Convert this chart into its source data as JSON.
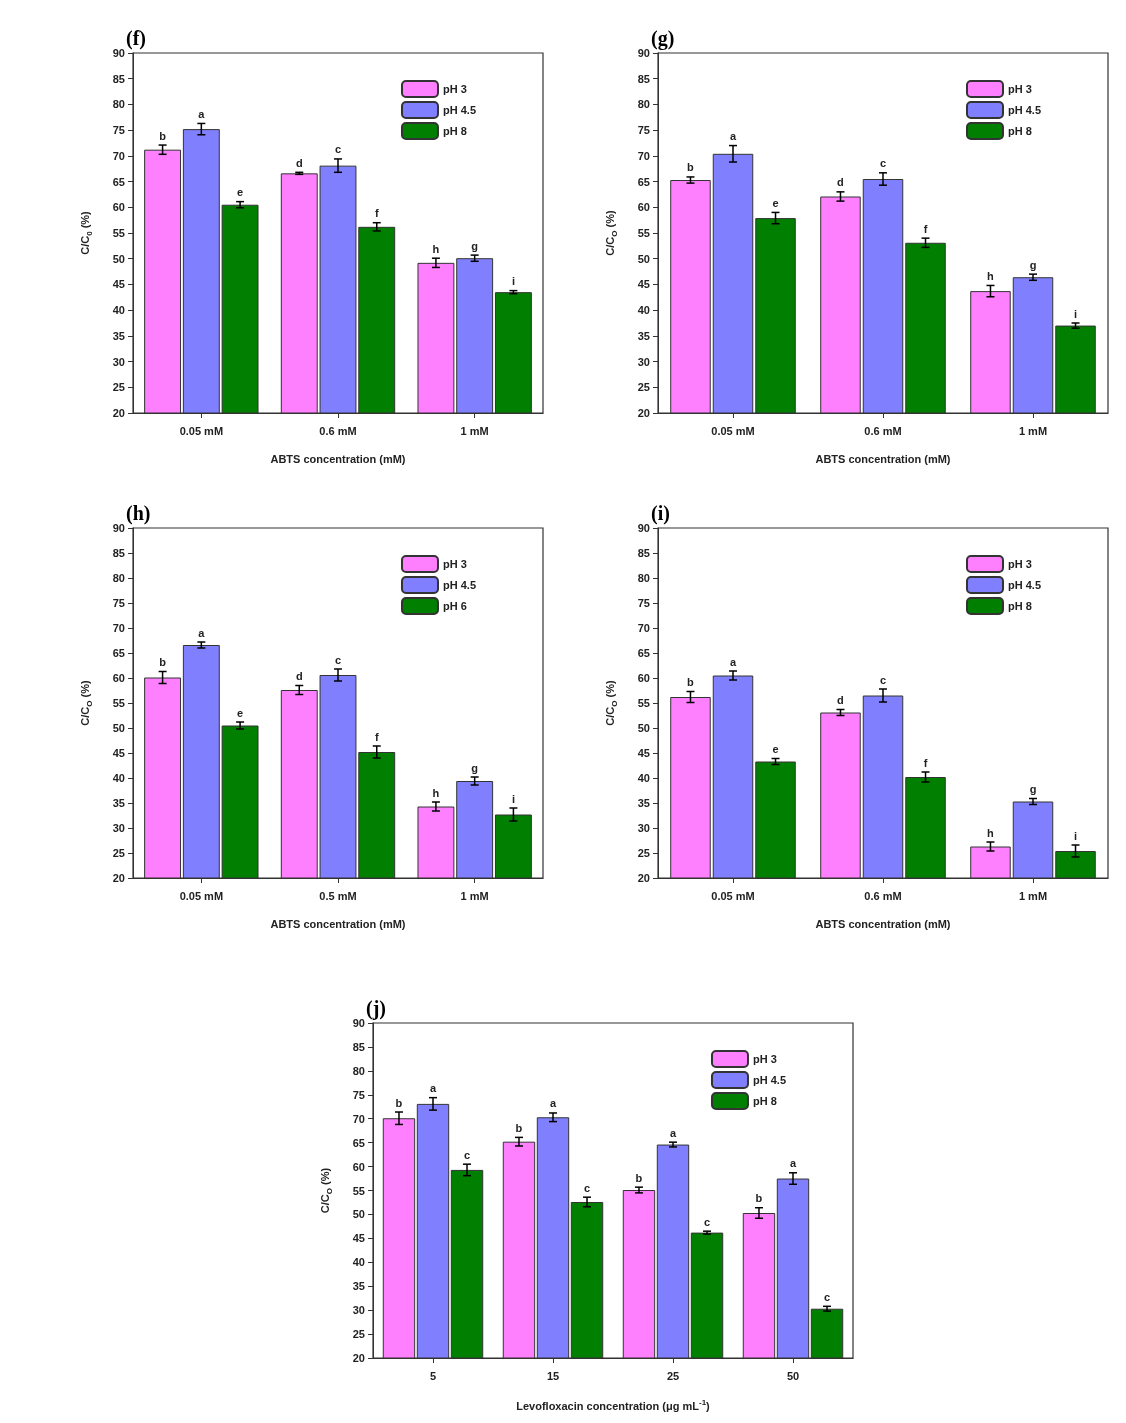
{
  "chart_data": [
    {
      "type": "bar",
      "title": "(f)",
      "xlabel": "ABTS concentration (mM)",
      "ylabel": "C/C$_{0}$ (%)",
      "categories": [
        "0.05 mM",
        "0.6 mM",
        "1 mM"
      ],
      "ylim": [
        20,
        90
      ],
      "yticks": [
        20,
        25,
        30,
        35,
        40,
        45,
        50,
        55,
        60,
        65,
        70,
        75,
        80,
        85,
        90
      ],
      "legend": "top right",
      "series": [
        {
          "name": "pH 3",
          "color": "#ff80ff",
          "values": [
            71.2,
            66.6,
            49.2
          ],
          "errors": [
            0.9,
            0.2,
            0.9
          ],
          "value_labels": [
            "b",
            "d",
            "h"
          ]
        },
        {
          "name": "pH 4.5",
          "color": "#8080ff",
          "values": [
            75.2,
            68.1,
            50.1
          ],
          "errors": [
            1.1,
            1.3,
            0.6
          ],
          "value_labels": [
            "a",
            "c",
            "g"
          ]
        },
        {
          "name": "pH 8",
          "color": "#007f00",
          "values": [
            60.5,
            56.2,
            43.5
          ],
          "errors": [
            0.6,
            0.8,
            0.3
          ],
          "value_labels": [
            "e",
            "f",
            "i"
          ]
        }
      ]
    },
    {
      "type": "bar",
      "title": "(g)",
      "xlabel": "ABTS concentration (mM)",
      "ylabel": "C/C$_{O}$ (%)",
      "categories": [
        "0.05 mM",
        "0.6 mM",
        "1 mM"
      ],
      "ylim": [
        20,
        90
      ],
      "yticks": [
        20,
        25,
        30,
        35,
        40,
        45,
        50,
        55,
        60,
        65,
        70,
        75,
        80,
        85,
        90
      ],
      "legend": "top right",
      "series": [
        {
          "name": "pH 3",
          "color": "#ff80ff",
          "values": [
            65.3,
            62.1,
            43.7
          ],
          "errors": [
            0.6,
            0.9,
            1.1
          ],
          "value_labels": [
            "b",
            "d",
            "h"
          ]
        },
        {
          "name": "pH 4.5",
          "color": "#8080ff",
          "values": [
            70.4,
            65.5,
            46.4
          ],
          "errors": [
            1.6,
            1.2,
            0.6
          ],
          "value_labels": [
            "a",
            "c",
            "g"
          ]
        },
        {
          "name": "pH 8",
          "color": "#007f00",
          "values": [
            57.9,
            53.1,
            37.0
          ],
          "errors": [
            1.1,
            0.9,
            0.5
          ],
          "value_labels": [
            "e",
            "f",
            "i"
          ]
        }
      ]
    },
    {
      "type": "bar",
      "title": "(h)",
      "xlabel": "ABTS concentration (mM)",
      "ylabel": "C/C$_{O}$ (%)",
      "categories": [
        "0.05 mM",
        "0.5 mM",
        "1 mM"
      ],
      "ylim": [
        20,
        90
      ],
      "yticks": [
        20,
        25,
        30,
        35,
        40,
        45,
        50,
        55,
        60,
        65,
        70,
        75,
        80,
        85,
        90
      ],
      "legend": "top right",
      "series": [
        {
          "name": "pH 3",
          "color": "#ff80ff",
          "values": [
            60.1,
            57.6,
            34.3
          ],
          "errors": [
            1.2,
            0.9,
            0.9
          ],
          "value_labels": [
            "b",
            "d",
            "h"
          ]
        },
        {
          "name": "pH 4.5",
          "color": "#8080ff",
          "values": [
            66.6,
            60.6,
            39.4
          ],
          "errors": [
            0.6,
            1.2,
            0.8
          ],
          "value_labels": [
            "a",
            "c",
            "g"
          ]
        },
        {
          "name": "pH 6",
          "color": "#007f00",
          "values": [
            50.5,
            45.2,
            32.7
          ],
          "errors": [
            0.7,
            1.2,
            1.3
          ],
          "value_labels": [
            "e",
            "f",
            "i"
          ]
        }
      ]
    },
    {
      "type": "bar",
      "title": "(i)",
      "xlabel": "ABTS concentration (mM)",
      "ylabel": "C/C$_{O}$ (%)",
      "categories": [
        "0.05 mM",
        "0.6 mM",
        "1 mM"
      ],
      "ylim": [
        20,
        90
      ],
      "yticks": [
        20,
        25,
        30,
        35,
        40,
        45,
        50,
        55,
        60,
        65,
        70,
        75,
        80,
        85,
        90
      ],
      "legend": "top right",
      "series": [
        {
          "name": "pH 3",
          "color": "#ff80ff",
          "values": [
            56.2,
            53.1,
            26.3
          ],
          "errors": [
            1.1,
            0.6,
            0.9
          ],
          "value_labels": [
            "b",
            "d",
            "h"
          ]
        },
        {
          "name": "pH 4.5",
          "color": "#8080ff",
          "values": [
            60.5,
            56.5,
            35.3
          ],
          "errors": [
            0.9,
            1.3,
            0.6
          ],
          "value_labels": [
            "a",
            "c",
            "g"
          ]
        },
        {
          "name": "pH 8",
          "color": "#007f00",
          "values": [
            43.3,
            40.2,
            25.4
          ],
          "errors": [
            0.6,
            1.0,
            1.2
          ],
          "value_labels": [
            "e",
            "f",
            "i"
          ]
        }
      ]
    },
    {
      "type": "bar",
      "title": "(j)",
      "xlabel": "Levofloxacin concentration (μg mL$^{-1}$)",
      "ylabel": "C/C$_{O}$ (%)",
      "categories": [
        "5",
        "15",
        "25",
        "50"
      ],
      "ylim": [
        20,
        90
      ],
      "yticks": [
        20,
        25,
        30,
        35,
        40,
        45,
        50,
        55,
        60,
        65,
        70,
        75,
        80,
        85,
        90
      ],
      "legend": "top right",
      "series": [
        {
          "name": "pH 3",
          "color": "#ff80ff",
          "values": [
            70.1,
            65.2,
            55.1,
            50.3
          ],
          "errors": [
            1.3,
            0.9,
            0.6,
            1.1
          ],
          "value_labels": [
            "b",
            "b",
            "b",
            "b"
          ]
        },
        {
          "name": "pH 4.5",
          "color": "#8080ff",
          "values": [
            73.1,
            70.3,
            64.6,
            57.5
          ],
          "errors": [
            1.3,
            0.9,
            0.5,
            1.2
          ],
          "value_labels": [
            "a",
            "a",
            "a",
            "a"
          ]
        },
        {
          "name": "pH 8",
          "color": "#007f00",
          "values": [
            59.3,
            52.6,
            46.2,
            30.3
          ],
          "errors": [
            1.2,
            1.0,
            0.3,
            0.5
          ],
          "value_labels": [
            "c",
            "c",
            "c",
            "c"
          ]
        }
      ]
    }
  ]
}
